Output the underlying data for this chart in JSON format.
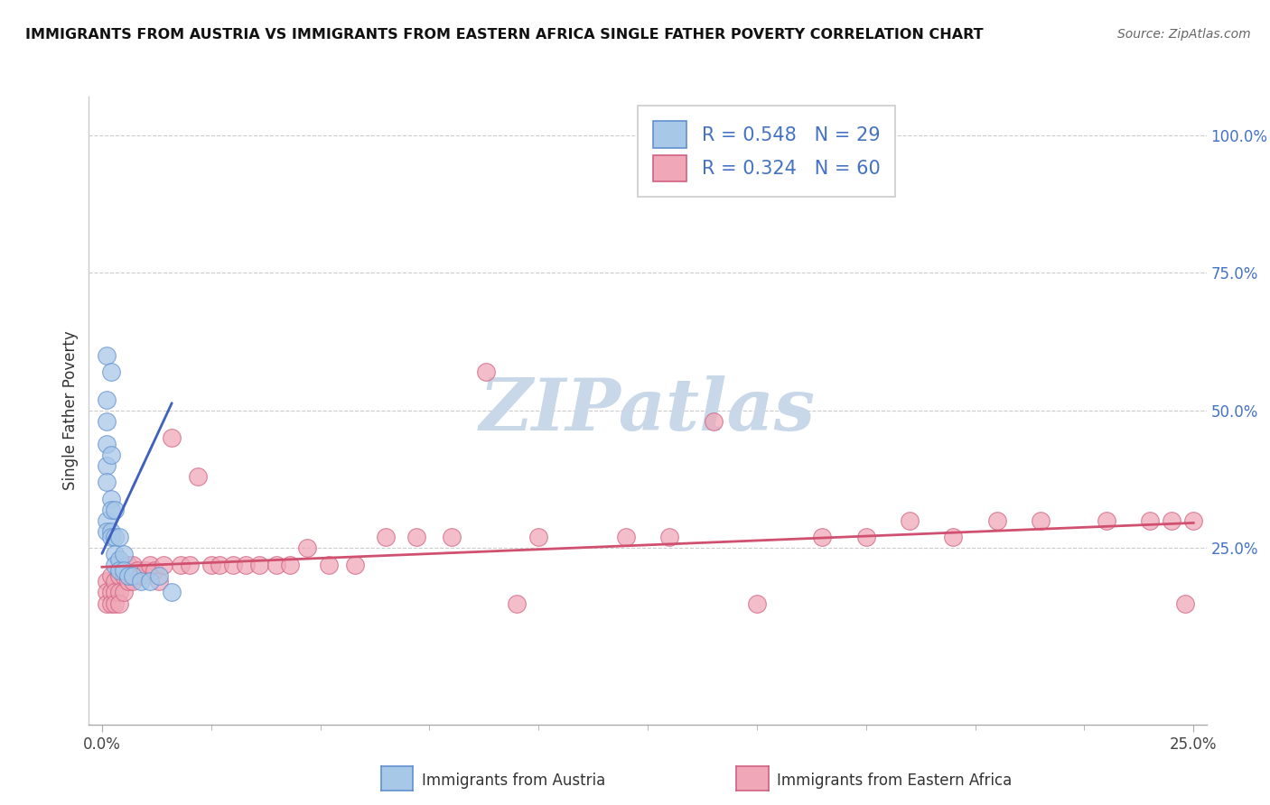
{
  "title": "IMMIGRANTS FROM AUSTRIA VS IMMIGRANTS FROM EASTERN AFRICA SINGLE FATHER POVERTY CORRELATION CHART",
  "source": "Source: ZipAtlas.com",
  "ylabel": "Single Father Poverty",
  "yaxis_labels": [
    "100.0%",
    "75.0%",
    "50.0%",
    "25.0%"
  ],
  "yaxis_values": [
    1.0,
    0.75,
    0.5,
    0.25
  ],
  "xlim": [
    0.0,
    0.25
  ],
  "ylim": [
    -0.06,
    1.06
  ],
  "legend_label1": "Immigrants from Austria",
  "legend_label2": "Immigrants from Eastern Africa",
  "R1": 0.548,
  "N1": 29,
  "R2": 0.324,
  "N2": 60,
  "color_austria_fill": "#a8c8e8",
  "color_austria_edge": "#6090d0",
  "color_eastern_fill": "#f0a8b8",
  "color_eastern_edge": "#d06080",
  "color_line_austria": "#4060c0",
  "color_line_eastern": "#d05070",
  "watermark_color": "#c8d8e8",
  "austria_x": [
    0.001,
    0.002,
    0.001,
    0.001,
    0.001,
    0.001,
    0.002,
    0.001,
    0.002,
    0.001,
    0.001,
    0.002,
    0.002,
    0.003,
    0.002,
    0.003,
    0.003,
    0.003,
    0.004,
    0.004,
    0.004,
    0.005,
    0.005,
    0.006,
    0.007,
    0.009,
    0.011,
    0.013,
    0.016
  ],
  "austria_y": [
    0.6,
    0.57,
    0.52,
    0.48,
    0.44,
    0.4,
    0.42,
    0.37,
    0.34,
    0.3,
    0.28,
    0.32,
    0.28,
    0.32,
    0.27,
    0.27,
    0.24,
    0.22,
    0.27,
    0.23,
    0.21,
    0.24,
    0.21,
    0.2,
    0.2,
    0.19,
    0.19,
    0.2,
    0.17
  ],
  "eastern_africa_x": [
    0.001,
    0.001,
    0.001,
    0.002,
    0.002,
    0.002,
    0.003,
    0.003,
    0.003,
    0.004,
    0.004,
    0.004,
    0.005,
    0.005,
    0.006,
    0.006,
    0.007,
    0.007,
    0.008,
    0.009,
    0.01,
    0.011,
    0.012,
    0.013,
    0.014,
    0.016,
    0.018,
    0.02,
    0.022,
    0.025,
    0.027,
    0.03,
    0.033,
    0.036,
    0.04,
    0.043,
    0.047,
    0.052,
    0.058,
    0.065,
    0.072,
    0.08,
    0.088,
    0.095,
    0.1,
    0.12,
    0.13,
    0.14,
    0.15,
    0.165,
    0.175,
    0.185,
    0.195,
    0.205,
    0.215,
    0.23,
    0.24,
    0.245,
    0.248,
    0.25
  ],
  "eastern_africa_y": [
    0.19,
    0.17,
    0.15,
    0.2,
    0.17,
    0.15,
    0.19,
    0.17,
    0.15,
    0.2,
    0.17,
    0.15,
    0.2,
    0.17,
    0.22,
    0.19,
    0.22,
    0.19,
    0.21,
    0.2,
    0.21,
    0.22,
    0.21,
    0.19,
    0.22,
    0.45,
    0.22,
    0.22,
    0.38,
    0.22,
    0.22,
    0.22,
    0.22,
    0.22,
    0.22,
    0.22,
    0.25,
    0.22,
    0.22,
    0.27,
    0.27,
    0.27,
    0.57,
    0.15,
    0.27,
    0.27,
    0.27,
    0.48,
    0.15,
    0.27,
    0.27,
    0.3,
    0.27,
    0.3,
    0.3,
    0.3,
    0.3,
    0.3,
    0.15,
    0.3
  ]
}
